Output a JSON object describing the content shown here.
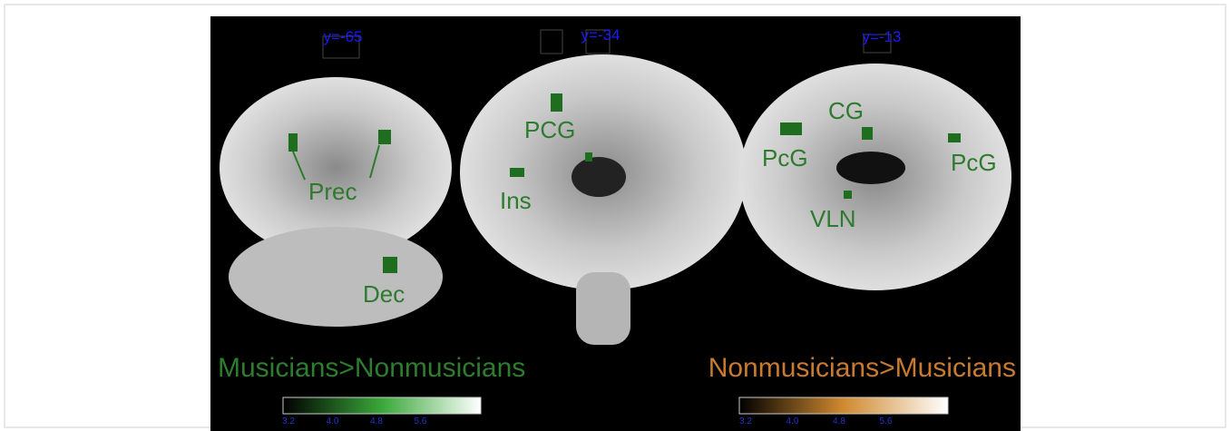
{
  "slices": [
    {
      "label": "y=-65",
      "regions": [
        "Prec",
        "Dec"
      ]
    },
    {
      "label": "y=-34",
      "regions": [
        "PCG",
        "Ins"
      ]
    },
    {
      "label": "y=-13",
      "regions": [
        "CG",
        "PcG",
        "PcG",
        "VLN"
      ]
    }
  ],
  "contrasts": [
    {
      "title": "Musicians>Nonmusicians",
      "scale": [
        "3.2",
        "4.0",
        "4.8",
        "5.6"
      ]
    },
    {
      "title": "Nonmusicians>Musicians",
      "scale": [
        "3.2",
        "4.0",
        "4.8",
        "5.6"
      ]
    }
  ]
}
